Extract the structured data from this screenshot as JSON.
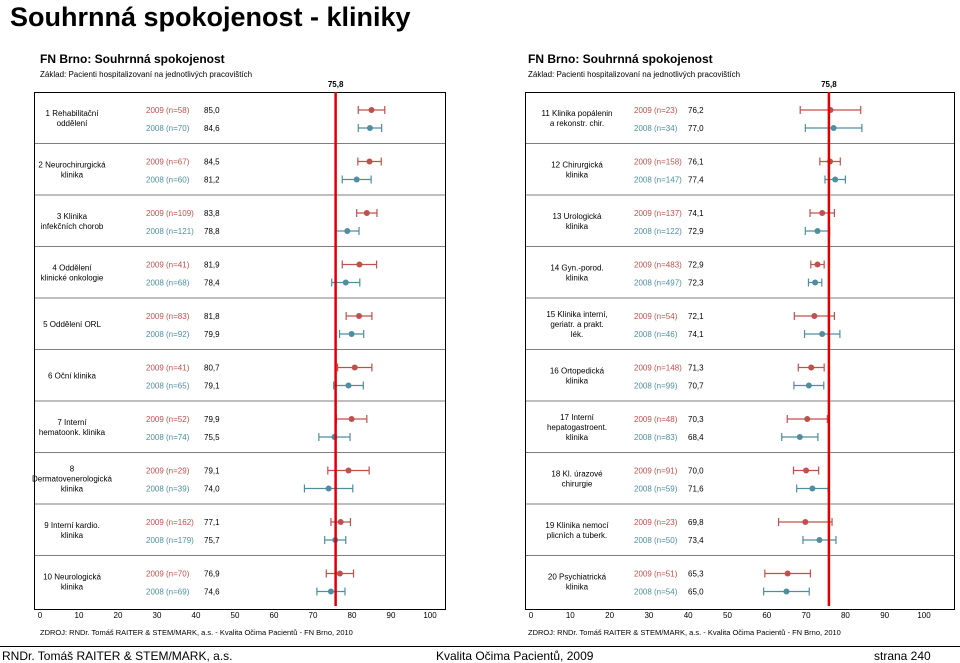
{
  "page_title": "Souhrnná spokojenost - kliniky",
  "footer": {
    "author": "RNDr. Tomáš RAITER & STEM/MARK, a.s.",
    "project": "Kvalita Očima Pacientů, 2009",
    "page": "strana 240"
  },
  "colors": {
    "y2009": "#c0504d",
    "y2008": "#4f8ea0",
    "benchmark": "#e00000"
  },
  "chart_data": [
    {
      "type": "dot-errorbar",
      "title": "FN Brno: Souhrnná spokojenost",
      "subtitle": "Základ: Pacienti hospitalizovaní na jednotlivých pracovištích",
      "source": "ZDROJ: RNDr. Tomáš RAITER & STEM/MARK, a.s. - Kvalita Očima Pacientů - FN Brno, 2010",
      "benchmark": 75.8,
      "benchmark_label": "75,8",
      "xlim": [
        0,
        100
      ],
      "xticks": [
        "0",
        "10",
        "20",
        "30",
        "40",
        "50",
        "60",
        "70",
        "80",
        "90",
        "100"
      ],
      "rows": [
        {
          "label": "1 Rehabilitační oddělení",
          "a": {
            "label": "2009 (n=58)",
            "display": "85,0",
            "value": 85.0,
            "low": 81.6,
            "high": 88.4
          },
          "b": {
            "label": "2008 (n=70)",
            "display": "84,6",
            "value": 84.6,
            "low": 81.6,
            "high": 87.6
          }
        },
        {
          "label": "2 Neurochirurgická klinika",
          "a": {
            "label": "2009 (n=67)",
            "display": "84,5",
            "value": 84.5,
            "low": 81.5,
            "high": 87.5
          },
          "b": {
            "label": "2008 (n=60)",
            "display": "81,2",
            "value": 81.2,
            "low": 77.5,
            "high": 84.9
          }
        },
        {
          "label": "3 Klinika infekčních chorob",
          "a": {
            "label": "2009 (n=109)",
            "display": "83,8",
            "value": 83.8,
            "low": 81.2,
            "high": 86.4
          },
          "b": {
            "label": "2008 (n=121)",
            "display": "78,8",
            "value": 78.8,
            "low": 75.8,
            "high": 81.8
          }
        },
        {
          "label": "4 Oddělení klinické onkologie",
          "a": {
            "label": "2009 (n=41)",
            "display": "81,9",
            "value": 81.9,
            "low": 77.5,
            "high": 86.3
          },
          "b": {
            "label": "2008 (n=68)",
            "display": "78,4",
            "value": 78.4,
            "low": 74.8,
            "high": 82.0
          }
        },
        {
          "label": "5 Oddělení ORL",
          "a": {
            "label": "2009 (n=83)",
            "display": "81,8",
            "value": 81.8,
            "low": 78.5,
            "high": 85.1
          },
          "b": {
            "label": "2008 (n=92)",
            "display": "79,9",
            "value": 79.9,
            "low": 76.8,
            "high": 83.0
          }
        },
        {
          "label": "6 Oční klinika",
          "a": {
            "label": "2009 (n=41)",
            "display": "80,7",
            "value": 80.7,
            "low": 76.3,
            "high": 85.1
          },
          "b": {
            "label": "2008 (n=65)",
            "display": "79,1",
            "value": 79.1,
            "low": 75.3,
            "high": 82.9
          }
        },
        {
          "label": "7 Interní hematoonk. klinika",
          "a": {
            "label": "2009 (n=52)",
            "display": "79,9",
            "value": 79.9,
            "low": 76.0,
            "high": 83.8
          },
          "b": {
            "label": "2008 (n=74)",
            "display": "75,5",
            "value": 75.5,
            "low": 71.5,
            "high": 79.5
          }
        },
        {
          "label": "8 Dermatovenerologická klinika",
          "a": {
            "label": "2009 (n=29)",
            "display": "79,1",
            "value": 79.1,
            "low": 73.8,
            "high": 84.4
          },
          "b": {
            "label": "2008 (n=39)",
            "display": "74,0",
            "value": 74.0,
            "low": 67.8,
            "high": 80.2
          }
        },
        {
          "label": "9 Interní kardio. klinika",
          "a": {
            "label": "2009 (n=162)",
            "display": "77,1",
            "value": 77.1,
            "low": 74.6,
            "high": 79.6
          },
          "b": {
            "label": "2008 (n=179)",
            "display": "75,7",
            "value": 75.7,
            "low": 73.0,
            "high": 78.4
          }
        },
        {
          "label": "10 Neurologická klinika",
          "a": {
            "label": "2009 (n=70)",
            "display": "76,9",
            "value": 76.9,
            "low": 73.4,
            "high": 80.4
          },
          "b": {
            "label": "2008 (n=69)",
            "display": "74,6",
            "value": 74.6,
            "low": 71.0,
            "high": 78.2
          }
        }
      ]
    },
    {
      "type": "dot-errorbar",
      "title": "FN Brno: Souhrnná spokojenost",
      "subtitle": "Základ: Pacienti hospitalizovaní na jednotlivých pracovištích",
      "source": "ZDROJ: RNDr. Tomáš RAITER & STEM/MARK, a.s. - Kvalita Očima Pacientů - FN Brno, 2010",
      "benchmark": 75.8,
      "benchmark_label": "75,8",
      "xlim": [
        0,
        100
      ],
      "xticks": [
        "0",
        "10",
        "20",
        "30",
        "40",
        "50",
        "60",
        "70",
        "80",
        "90",
        "100"
      ],
      "rows": [
        {
          "label": "11 Klinika popálenin a rekonstr. chir.",
          "a": {
            "label": "2009 (n=23)",
            "display": "76,2",
            "value": 76.2,
            "low": 68.5,
            "high": 83.9
          },
          "b": {
            "label": "2008 (n=34)",
            "display": "77,0",
            "value": 77.0,
            "low": 69.8,
            "high": 84.2
          }
        },
        {
          "label": "12 Chirurgická klinika",
          "a": {
            "label": "2009 (n=158)",
            "display": "76,1",
            "value": 76.1,
            "low": 73.5,
            "high": 78.7
          },
          "b": {
            "label": "2008 (n=147)",
            "display": "77,4",
            "value": 77.4,
            "low": 74.8,
            "high": 80.0
          }
        },
        {
          "label": "13 Urologická klinika",
          "a": {
            "label": "2009 (n=137)",
            "display": "74,1",
            "value": 74.1,
            "low": 71.0,
            "high": 77.2
          },
          "b": {
            "label": "2008 (n=122)",
            "display": "72,9",
            "value": 72.9,
            "low": 69.8,
            "high": 76.0
          }
        },
        {
          "label": "14 Gyn.-porod. klinika",
          "a": {
            "label": "2009 (n=483)",
            "display": "72,9",
            "value": 72.9,
            "low": 71.2,
            "high": 74.6
          },
          "b": {
            "label": "2008 (n=497)",
            "display": "72,3",
            "value": 72.3,
            "low": 70.6,
            "high": 74.0
          }
        },
        {
          "label": "15 Klinika interní, geriatr. a prakt. lék.",
          "a": {
            "label": "2009 (n=54)",
            "display": "72,1",
            "value": 72.1,
            "low": 67.0,
            "high": 77.2
          },
          "b": {
            "label": "2008 (n=46)",
            "display": "74,1",
            "value": 74.1,
            "low": 69.6,
            "high": 78.6
          }
        },
        {
          "label": "16 Ortopedická klinika",
          "a": {
            "label": "2009 (n=148)",
            "display": "71,3",
            "value": 71.3,
            "low": 68.0,
            "high": 74.6
          },
          "b": {
            "label": "2008 (n=99)",
            "display": "70,7",
            "value": 70.7,
            "low": 66.9,
            "high": 74.5
          }
        },
        {
          "label": "17 Interní hepatogastroent. klinika",
          "a": {
            "label": "2009 (n=48)",
            "display": "70,3",
            "value": 70.3,
            "low": 65.2,
            "high": 75.4
          },
          "b": {
            "label": "2008 (n=83)",
            "display": "68,4",
            "value": 68.4,
            "low": 63.8,
            "high": 73.0
          }
        },
        {
          "label": "18 Kl. úrazové chirurgie",
          "a": {
            "label": "2009 (n=91)",
            "display": "70,0",
            "value": 70.0,
            "low": 66.8,
            "high": 73.2
          },
          "b": {
            "label": "2008 (n=59)",
            "display": "71,6",
            "value": 71.6,
            "low": 67.6,
            "high": 75.6
          }
        },
        {
          "label": "19 Klinika nemocí plicních a tuberk.",
          "a": {
            "label": "2009 (n=23)",
            "display": "69,8",
            "value": 69.8,
            "low": 63.0,
            "high": 76.6
          },
          "b": {
            "label": "2008 (n=50)",
            "display": "73,4",
            "value": 73.4,
            "low": 69.2,
            "high": 77.6
          }
        },
        {
          "label": "20 Psychiatrická klinika",
          "a": {
            "label": "2009 (n=51)",
            "display": "65,3",
            "value": 65.3,
            "low": 59.5,
            "high": 71.1
          },
          "b": {
            "label": "2008 (n=54)",
            "display": "65,0",
            "value": 65.0,
            "low": 59.2,
            "high": 70.8
          }
        }
      ]
    }
  ]
}
